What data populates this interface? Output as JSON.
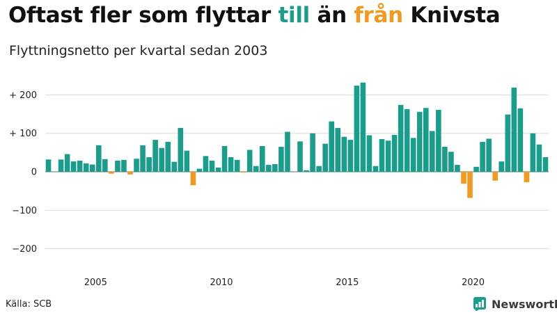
{
  "title": {
    "part1": "Oftast fler som flyttar ",
    "till": "till",
    "part2": " än ",
    "fran": "från",
    "part3": " Knivsta"
  },
  "subtitle": "Flyttningsnetto per kvartal sedan 2003",
  "source": "Källa: SCB",
  "brand": "Newsworthy",
  "colors": {
    "positive": "#1a9e8c",
    "negative": "#f29a1f",
    "grid": "#d9d9d9",
    "zero": "#8a8a8a"
  },
  "chart_data": {
    "type": "bar",
    "x_start": "2003-Q1",
    "frequency": "quarter",
    "ylim": [
      -200,
      245
    ],
    "yticks": [
      200,
      100,
      0,
      -100,
      -200
    ],
    "ytick_labels": [
      "+ 200",
      "+ 100",
      "0",
      "−100",
      "−200"
    ],
    "xticks": [
      2005,
      2010,
      2015,
      2020
    ],
    "xtick_labels": [
      "2005",
      "2010",
      "2015",
      "2020"
    ],
    "grid": true,
    "values": [
      32,
      0,
      32,
      46,
      27,
      29,
      22,
      19,
      69,
      33,
      -5,
      29,
      31,
      -7,
      34,
      69,
      38,
      83,
      62,
      78,
      26,
      114,
      55,
      -35,
      8,
      41,
      29,
      11,
      67,
      38,
      31,
      -2,
      57,
      15,
      67,
      18,
      20,
      65,
      104,
      0,
      79,
      4,
      100,
      15,
      73,
      131,
      114,
      91,
      83,
      224,
      232,
      95,
      15,
      85,
      81,
      96,
      174,
      163,
      88,
      156,
      166,
      106,
      161,
      65,
      52,
      18,
      -31,
      -68,
      13,
      78,
      86,
      -23,
      27,
      149,
      219,
      165,
      -27,
      100,
      71,
      38
    ]
  }
}
